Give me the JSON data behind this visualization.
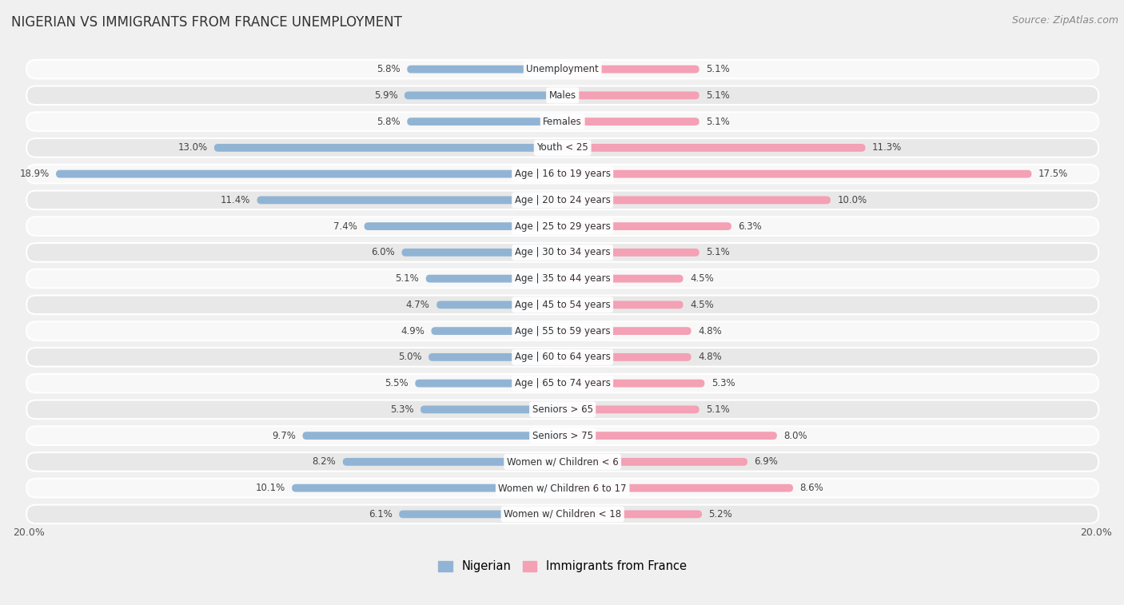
{
  "title": "NIGERIAN VS IMMIGRANTS FROM FRANCE UNEMPLOYMENT",
  "source": "Source: ZipAtlas.com",
  "categories": [
    "Unemployment",
    "Males",
    "Females",
    "Youth < 25",
    "Age | 16 to 19 years",
    "Age | 20 to 24 years",
    "Age | 25 to 29 years",
    "Age | 30 to 34 years",
    "Age | 35 to 44 years",
    "Age | 45 to 54 years",
    "Age | 55 to 59 years",
    "Age | 60 to 64 years",
    "Age | 65 to 74 years",
    "Seniors > 65",
    "Seniors > 75",
    "Women w/ Children < 6",
    "Women w/ Children 6 to 17",
    "Women w/ Children < 18"
  ],
  "nigerian": [
    5.8,
    5.9,
    5.8,
    13.0,
    18.9,
    11.4,
    7.4,
    6.0,
    5.1,
    4.7,
    4.9,
    5.0,
    5.5,
    5.3,
    9.7,
    8.2,
    10.1,
    6.1
  ],
  "france": [
    5.1,
    5.1,
    5.1,
    11.3,
    17.5,
    10.0,
    6.3,
    5.1,
    4.5,
    4.5,
    4.8,
    4.8,
    5.3,
    5.1,
    8.0,
    6.9,
    8.6,
    5.2
  ],
  "nigerian_color": "#92b4d4",
  "france_color": "#f4a0b5",
  "background_color": "#f0f0f0",
  "row_bg_odd": "#e8e8e8",
  "row_bg_even": "#f8f8f8",
  "max_val": 20.0
}
